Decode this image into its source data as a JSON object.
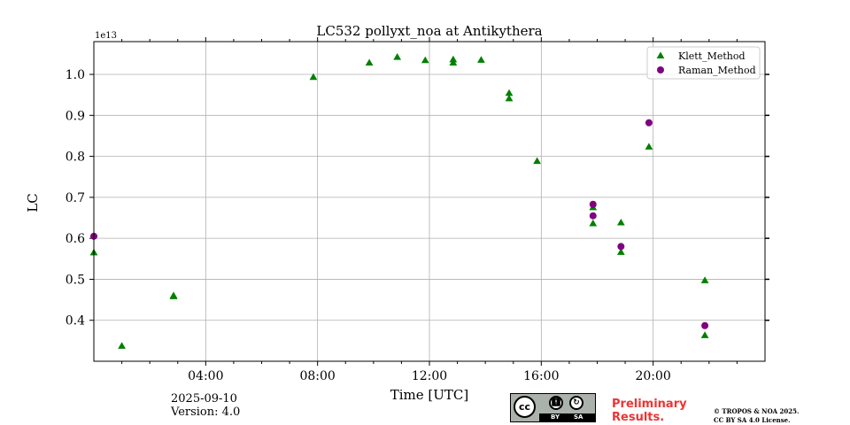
{
  "chart_data": {
    "type": "scatter",
    "title": "LC532 pollyxt_noa at Antikythera",
    "xlabel": "Time [UTC]",
    "ylabel": "LC",
    "y_offset_label": "1e13",
    "xlim": [
      0,
      24
    ],
    "ylim": [
      0.3,
      1.08
    ],
    "grid": true,
    "legend_position": "top-right",
    "x_ticks": [
      {
        "value": 4,
        "label": "04:00"
      },
      {
        "value": 8,
        "label": "08:00"
      },
      {
        "value": 12,
        "label": "12:00"
      },
      {
        "value": 16,
        "label": "16:00"
      },
      {
        "value": 20,
        "label": "20:00"
      }
    ],
    "x_minor_ticks": [
      1,
      2,
      3,
      5,
      6,
      7,
      9,
      10,
      11,
      13,
      14,
      15,
      17,
      18,
      19,
      21,
      22,
      23
    ],
    "y_ticks": [
      {
        "value": 0.4,
        "label": "0.4"
      },
      {
        "value": 0.5,
        "label": "0.5"
      },
      {
        "value": 0.6,
        "label": "0.6"
      },
      {
        "value": 0.7,
        "label": "0.7"
      },
      {
        "value": 0.8,
        "label": "0.8"
      },
      {
        "value": 0.9,
        "label": "0.9"
      },
      {
        "value": 1.0,
        "label": "1.0"
      }
    ],
    "series": [
      {
        "name": "Klett_Method",
        "marker": "triangle",
        "color": "#008000",
        "points": [
          {
            "x": 0.0,
            "y": 0.565
          },
          {
            "x": 1.0,
            "y": 0.337
          },
          {
            "x": 2.85,
            "y": 0.458
          },
          {
            "x": 2.85,
            "y": 0.46
          },
          {
            "x": 7.85,
            "y": 0.993
          },
          {
            "x": 9.85,
            "y": 1.028
          },
          {
            "x": 10.85,
            "y": 1.042
          },
          {
            "x": 11.85,
            "y": 1.034
          },
          {
            "x": 12.85,
            "y": 1.036
          },
          {
            "x": 12.85,
            "y": 1.028
          },
          {
            "x": 13.85,
            "y": 1.035
          },
          {
            "x": 14.85,
            "y": 0.954
          },
          {
            "x": 14.85,
            "y": 0.941
          },
          {
            "x": 15.85,
            "y": 0.788
          },
          {
            "x": 17.85,
            "y": 0.675
          },
          {
            "x": 17.85,
            "y": 0.636
          },
          {
            "x": 18.85,
            "y": 0.638
          },
          {
            "x": 18.85,
            "y": 0.566
          },
          {
            "x": 19.85,
            "y": 0.823
          },
          {
            "x": 21.85,
            "y": 0.497
          },
          {
            "x": 21.85,
            "y": 0.363
          }
        ]
      },
      {
        "name": "Raman_Method",
        "marker": "circle",
        "color": "#800080",
        "points": [
          {
            "x": 0.0,
            "y": 0.605
          },
          {
            "x": 17.85,
            "y": 0.683
          },
          {
            "x": 17.85,
            "y": 0.655
          },
          {
            "x": 18.85,
            "y": 0.58
          },
          {
            "x": 19.85,
            "y": 0.882
          },
          {
            "x": 21.85,
            "y": 0.387
          }
        ]
      }
    ]
  },
  "footer": {
    "date": "2025-09-10",
    "version": "Version: 4.0",
    "preliminary_line1": "Preliminary",
    "preliminary_line2": "Results.",
    "copyright_line1": "© TROPOS & NOA 2025.",
    "copyright_line2": "CC BY SA 4.0 License.",
    "cc_logo_text": "cc",
    "cc_by": "BY",
    "cc_sa": "SA"
  }
}
